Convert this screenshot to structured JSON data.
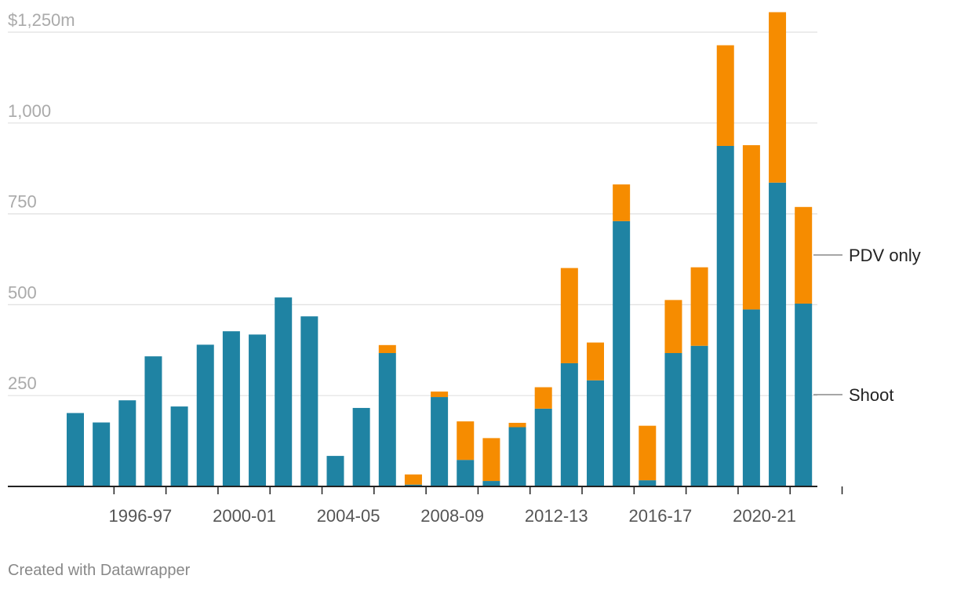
{
  "chart_data": {
    "type": "bar",
    "stacked": true,
    "categories": [
      "1994-95",
      "1995-96",
      "1996-97",
      "1997-98",
      "1998-99",
      "1999-00",
      "2000-01",
      "2001-02",
      "2002-03",
      "2003-04",
      "2004-05",
      "2005-06",
      "2006-07",
      "2007-08",
      "2008-09",
      "2009-10",
      "2010-11",
      "2011-12",
      "2012-13",
      "2013-14",
      "2014-15",
      "2015-16",
      "2016-17",
      "2017-18",
      "2018-19",
      "2019-20",
      "2020-21",
      "2021-22",
      "2022-23",
      "2023-24"
    ],
    "x_tick_labels": [
      "1996-97",
      "2000-01",
      "2004-05",
      "2008-09",
      "2012-13",
      "2016-17",
      "2020-21"
    ],
    "series": [
      {
        "name": "Shoot",
        "color": "#1f83a3",
        "values": [
          202,
          176,
          237,
          358,
          220,
          390,
          427,
          418,
          520,
          468,
          84,
          216,
          367,
          5,
          246,
          73,
          15,
          163,
          214,
          339,
          292,
          730,
          17,
          367,
          387,
          937,
          487,
          836,
          503,
          0
        ]
      },
      {
        "name": "PDV only",
        "color": "#f68c00",
        "values": [
          0,
          0,
          0,
          0,
          0,
          0,
          0,
          0,
          0,
          0,
          0,
          0,
          22,
          28,
          15,
          106,
          118,
          12,
          59,
          262,
          104,
          101,
          150,
          146,
          216,
          277,
          452,
          469,
          266,
          0
        ]
      }
    ],
    "ylim": [
      0,
      1250
    ],
    "y_ticks": [
      {
        "value": 1250,
        "label": "$1,250m"
      },
      {
        "value": 1000,
        "label": "1,000"
      },
      {
        "value": 750,
        "label": "750"
      },
      {
        "value": 500,
        "label": "500"
      },
      {
        "value": 250,
        "label": "250"
      }
    ],
    "legend": {
      "placement": "right",
      "labels": [
        "PDV only",
        "Shoot"
      ]
    }
  },
  "footer": {
    "credit": "Created with Datawrapper"
  }
}
